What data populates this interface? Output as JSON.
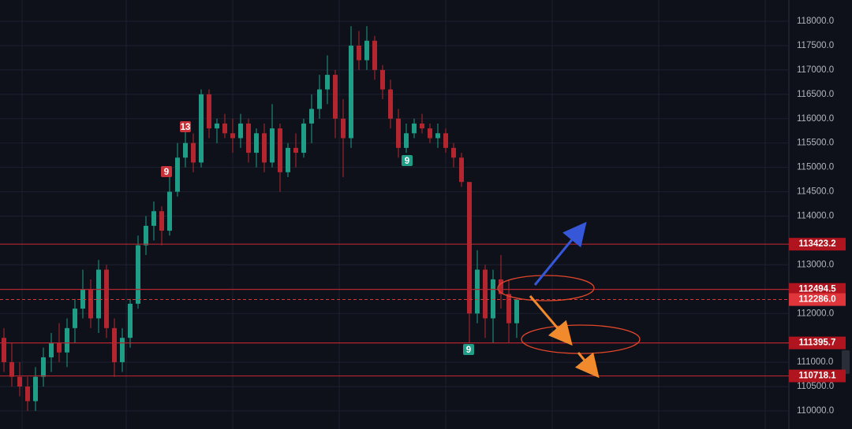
{
  "chart_data": {
    "type": "candlestick",
    "up_color": "#1f9d87",
    "down_color": "#b4262f",
    "open": [
      111500,
      111000,
      110700,
      110500,
      110200,
      110700,
      111100,
      111400,
      111200,
      111700,
      112100,
      112500,
      111900,
      112900,
      111700,
      111000,
      111500,
      112200,
      113400,
      113800,
      114100,
      113700,
      114500,
      115200,
      115500,
      115100,
      116500,
      115800,
      115900,
      115700,
      115600,
      115900,
      115300,
      115700,
      115100,
      115800,
      114900,
      115400,
      115300,
      115900,
      116200,
      116600,
      116900,
      116000,
      115600,
      117500,
      117200,
      117600,
      117000,
      116600,
      116000,
      115400,
      115700,
      115900,
      115800,
      115600,
      115700,
      115400,
      115200,
      114700,
      112000,
      112900,
      111900,
      112700,
      112400,
      111800
    ],
    "high": [
      111700,
      111400,
      111000,
      110700,
      110900,
      111300,
      111600,
      111800,
      111900,
      112300,
      112900,
      112700,
      113100,
      113000,
      111900,
      111700,
      112300,
      113600,
      114000,
      114300,
      114200,
      114800,
      115500,
      115900,
      115700,
      116600,
      116600,
      116000,
      116100,
      116000,
      116100,
      116000,
      115800,
      115900,
      116300,
      115900,
      115500,
      115700,
      116000,
      116500,
      116900,
      117300,
      117000,
      116400,
      117900,
      117800,
      117900,
      117700,
      117100,
      116800,
      116200,
      115900,
      116000,
      116100,
      115900,
      115900,
      115800,
      115500,
      115300,
      114700,
      113300,
      113000,
      112900,
      113200,
      112700,
      112300
    ],
    "low": [
      110800,
      110500,
      110300,
      110000,
      110000,
      110500,
      110800,
      111000,
      110900,
      111400,
      111900,
      111700,
      111600,
      111500,
      110700,
      110800,
      111300,
      112100,
      113200,
      113500,
      113400,
      113600,
      114400,
      115000,
      114900,
      115000,
      115600,
      115500,
      115600,
      115300,
      115400,
      115100,
      115000,
      114900,
      115000,
      114500,
      114800,
      115000,
      115200,
      115500,
      116000,
      116300,
      115600,
      114800,
      115400,
      117000,
      117000,
      116800,
      116400,
      115800,
      115200,
      115300,
      115600,
      115700,
      115500,
      115400,
      115300,
      115000,
      114600,
      111400,
      111800,
      111500,
      111400,
      112100,
      111400,
      111500
    ],
    "close": [
      111000,
      110700,
      110500,
      110200,
      110700,
      111100,
      111400,
      111200,
      111700,
      112100,
      112500,
      111900,
      112900,
      111700,
      111000,
      111500,
      112200,
      113400,
      113800,
      114100,
      113700,
      114500,
      115200,
      115500,
      115100,
      116500,
      115800,
      115900,
      115700,
      115600,
      115900,
      115300,
      115700,
      115100,
      115800,
      114900,
      115400,
      115300,
      115900,
      116200,
      116600,
      116900,
      116000,
      115600,
      117500,
      117200,
      117600,
      117000,
      116600,
      116000,
      115400,
      115700,
      115900,
      115800,
      115600,
      115700,
      115400,
      115200,
      114700,
      112000,
      112900,
      111900,
      112700,
      112400,
      111800,
      112286
    ],
    "ylim": [
      110000,
      118000
    ],
    "yticks": [
      {
        "value": 118000,
        "label": "118000.0"
      },
      {
        "value": 117500,
        "label": "117500.0"
      },
      {
        "value": 117000,
        "label": "117000.0"
      },
      {
        "value": 116500,
        "label": "116500.0"
      },
      {
        "value": 116000,
        "label": "116000.0"
      },
      {
        "value": 115500,
        "label": "115500.0"
      },
      {
        "value": 115000,
        "label": "115000.0"
      },
      {
        "value": 114500,
        "label": "114500.0"
      },
      {
        "value": 114000,
        "label": "114000.0"
      },
      {
        "value": 113000,
        "label": "113000.0"
      },
      {
        "value": 112000,
        "label": "112000.0"
      },
      {
        "value": 111000,
        "label": "111000.0"
      },
      {
        "value": 110500,
        "label": "110500.0"
      },
      {
        "value": 110000,
        "label": "110000.0"
      }
    ],
    "grid": true,
    "levels": [
      {
        "value": 113423.2,
        "label": "113423.2"
      },
      {
        "value": 112494.5,
        "label": "112494.5"
      },
      {
        "value": 111395.7,
        "label": "111395.7"
      },
      {
        "value": 110718.1,
        "label": "110718.1"
      }
    ],
    "current_price": {
      "value": 112286,
      "label": "112286.0"
    },
    "annotations": [
      "13",
      "9",
      "9",
      "9"
    ]
  }
}
